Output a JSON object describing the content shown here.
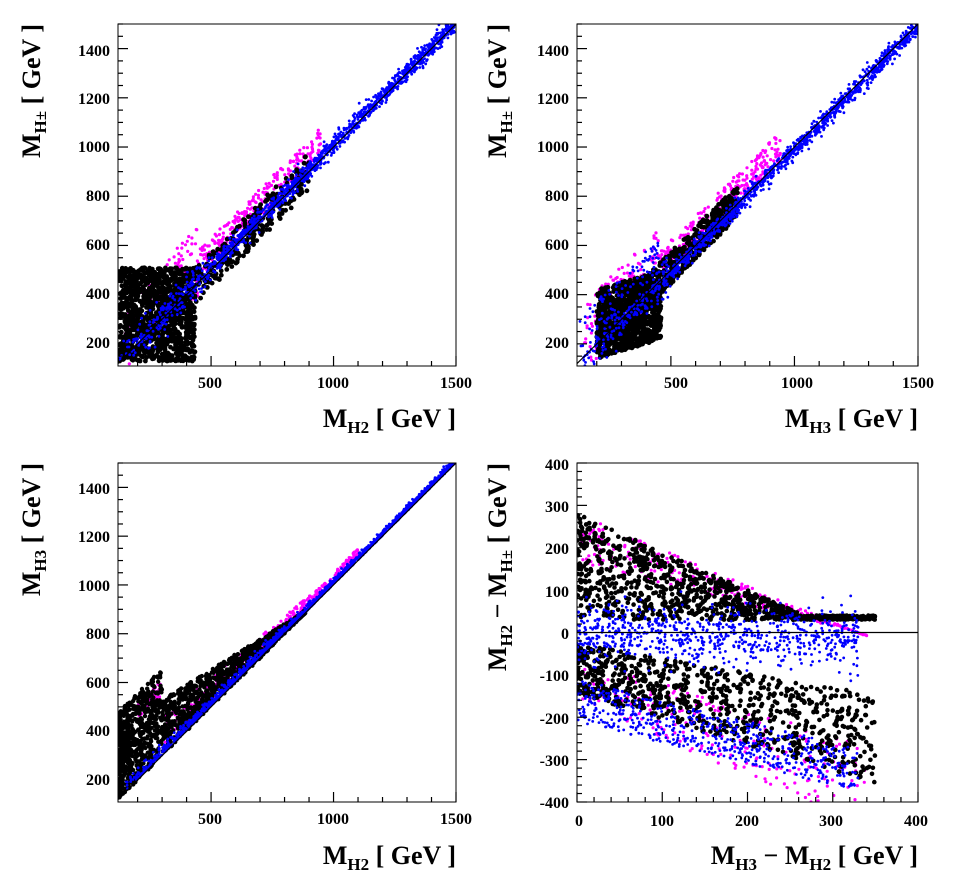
{
  "chart_data": [
    {
      "id": "p1",
      "type": "scatter",
      "title": "",
      "xlabel": {
        "main": "M",
        "sub": "H2",
        "tail": " [ GeV ]"
      },
      "ylabel": {
        "main": "M",
        "sub": "H±",
        "tail": " [ GeV ]"
      },
      "xlim": [
        120,
        1500
      ],
      "ylim": [
        110,
        1500
      ],
      "xticks": [
        "500",
        "1000",
        "1500"
      ],
      "yticks": [
        "200",
        "400",
        "600",
        "800",
        "1000",
        "1200",
        "1400"
      ],
      "reference_line": "diagonal",
      "series": [
        {
          "name": "magenta points",
          "color": "#ff00ff"
        },
        {
          "name": "black points",
          "color": "#000000"
        },
        {
          "name": "blue points",
          "color": "#0000ff"
        }
      ]
    },
    {
      "id": "p2",
      "type": "scatter",
      "title": "",
      "xlabel": {
        "main": "M",
        "sub": "H3",
        "tail": " [ GeV ]"
      },
      "ylabel": {
        "main": "M",
        "sub": "H±",
        "tail": " [ GeV ]"
      },
      "xlim": [
        120,
        1500
      ],
      "ylim": [
        110,
        1500
      ],
      "xticks": [
        "500",
        "1000",
        "1500"
      ],
      "yticks": [
        "200",
        "400",
        "600",
        "800",
        "1000",
        "1200",
        "1400"
      ],
      "reference_line": "diagonal",
      "series": [
        {
          "name": "magenta points",
          "color": "#ff00ff"
        },
        {
          "name": "black points",
          "color": "#000000"
        },
        {
          "name": "blue points",
          "color": "#0000ff"
        }
      ]
    },
    {
      "id": "p3",
      "type": "scatter",
      "title": "",
      "xlabel": {
        "main": "M",
        "sub": "H2",
        "tail": " [ GeV ]"
      },
      "ylabel": {
        "main": "M",
        "sub": "H3",
        "tail": " [ GeV ]"
      },
      "xlim": [
        120,
        1500
      ],
      "ylim": [
        110,
        1500
      ],
      "xticks": [
        "500",
        "1000",
        "1500"
      ],
      "yticks": [
        "200",
        "400",
        "600",
        "800",
        "1000",
        "1200",
        "1400"
      ],
      "reference_line": "diagonal",
      "series": [
        {
          "name": "magenta points",
          "color": "#ff00ff"
        },
        {
          "name": "black points",
          "color": "#000000"
        },
        {
          "name": "blue points",
          "color": "#0000ff"
        }
      ]
    },
    {
      "id": "p4",
      "type": "scatter",
      "title": "",
      "xlabel": {
        "main": "M",
        "sub": "H3",
        "tail": " − M",
        "sub2": "H2",
        "tail2": " [ GeV ]"
      },
      "ylabel": {
        "main": "M",
        "sub": "H2",
        "tail": " − M",
        "sub2": "H±",
        "tail2": " [ GeV ]"
      },
      "xlim": [
        0,
        400
      ],
      "ylim": [
        -400,
        400
      ],
      "xticks": [
        "0",
        "100",
        "200",
        "300",
        "400"
      ],
      "yticks": [
        "-400",
        "-300",
        "-200",
        "-100",
        "0",
        "100",
        "200",
        "300",
        "400"
      ],
      "reference_line": "zero",
      "series": [
        {
          "name": "magenta points",
          "color": "#ff00ff"
        },
        {
          "name": "black points",
          "color": "#000000"
        },
        {
          "name": "blue points",
          "color": "#0000ff"
        }
      ]
    }
  ]
}
